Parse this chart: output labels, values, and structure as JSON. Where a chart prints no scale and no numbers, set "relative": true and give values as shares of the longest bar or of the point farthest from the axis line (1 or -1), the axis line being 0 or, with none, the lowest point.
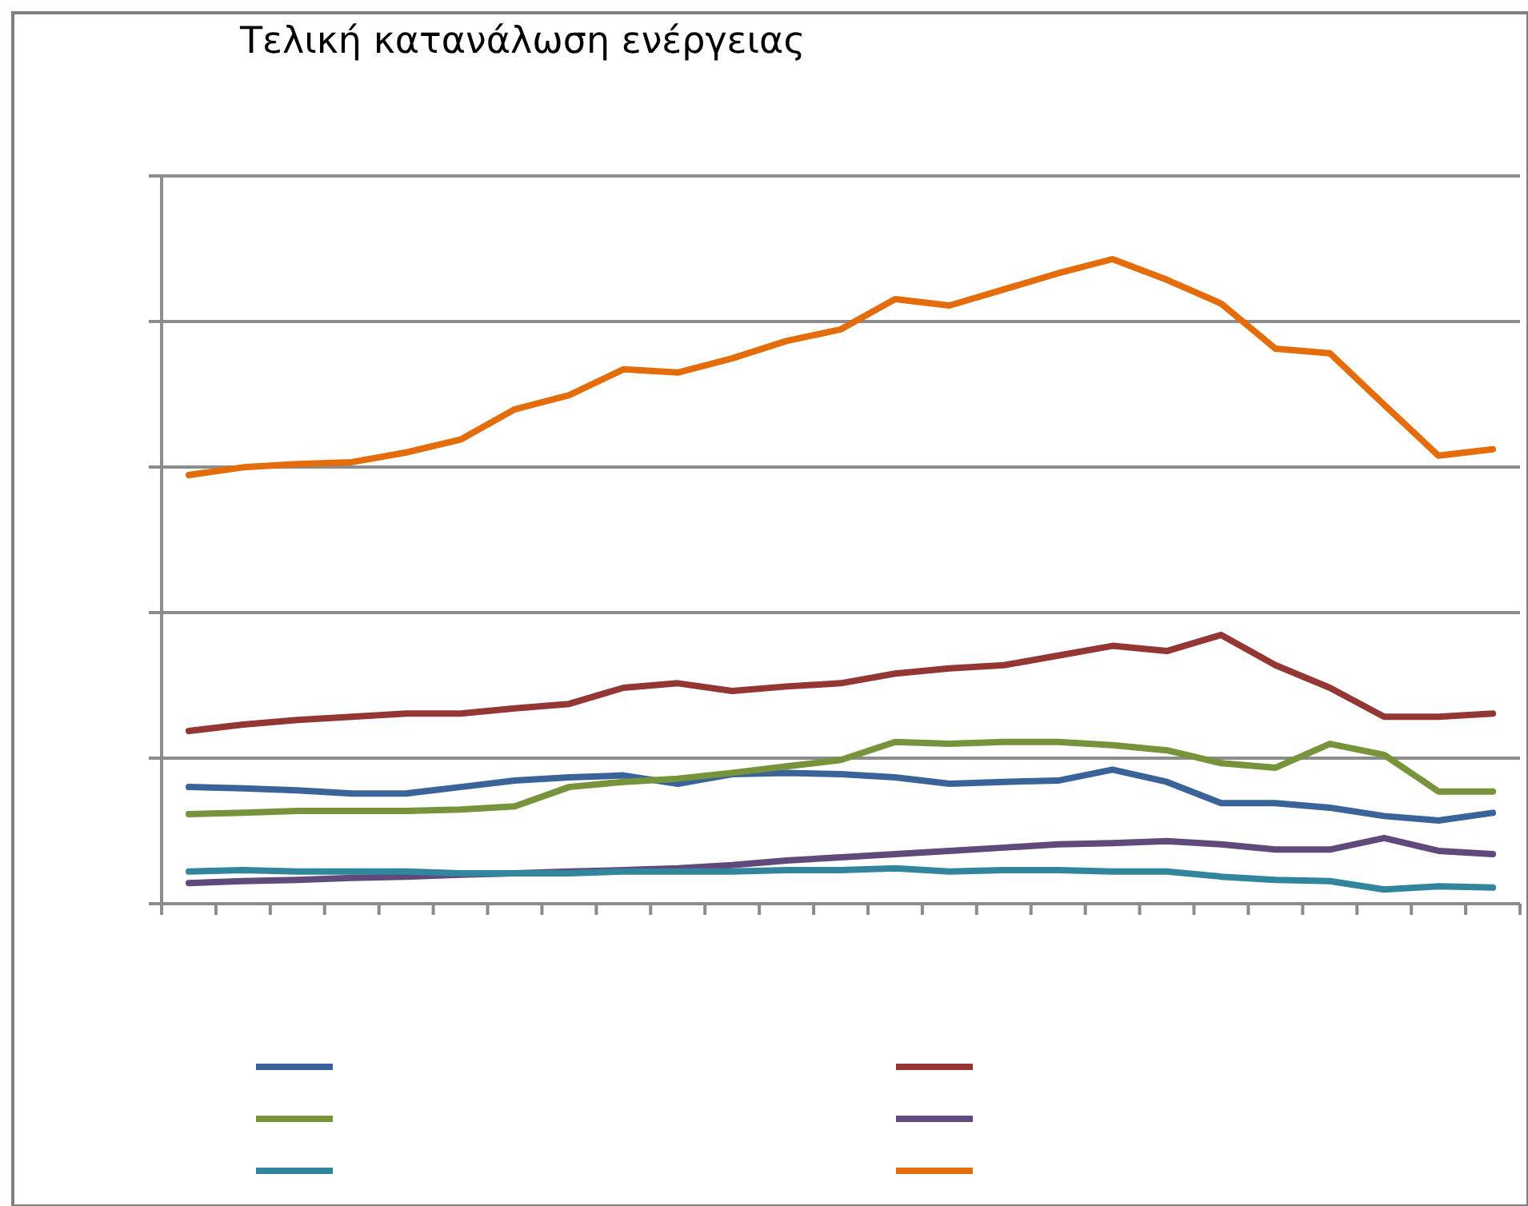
{
  "chart_data": {
    "type": "line",
    "title": "Τελική κατανάλωση ενέργειας",
    "relative": true,
    "grid": "y",
    "marker": "none",
    "line_style": "solid",
    "categories": [
      null,
      null,
      null,
      null,
      null,
      null,
      null,
      null,
      null,
      null,
      null,
      null,
      null,
      null,
      null,
      null,
      null,
      null,
      null,
      null,
      null,
      null,
      null,
      null,
      null
    ],
    "series": [
      {
        "color": "#3a6499",
        "values": [
          0.181,
          0.179,
          0.176,
          0.171,
          0.171,
          0.181,
          0.191,
          0.196,
          0.199,
          0.186,
          0.201,
          0.203,
          0.201,
          0.196,
          0.186,
          0.189,
          0.191,
          0.208,
          0.189,
          0.156,
          0.156,
          0.149,
          0.136,
          0.129,
          0.141
        ]
      },
      {
        "color": "#943634",
        "values": [
          0.268,
          0.278,
          0.285,
          0.29,
          0.295,
          0.295,
          0.303,
          0.31,
          0.335,
          0.342,
          0.33,
          0.337,
          0.342,
          0.357,
          0.365,
          0.37,
          0.385,
          0.4,
          0.392,
          0.417,
          0.37,
          0.335,
          0.29,
          0.29,
          0.295
        ]
      },
      {
        "color": "#77933c",
        "values": [
          0.139,
          0.141,
          0.144,
          0.144,
          0.144,
          0.146,
          0.151,
          0.181,
          0.189,
          0.194,
          0.203,
          0.213,
          0.223,
          0.251,
          0.248,
          0.251,
          0.251,
          0.246,
          0.238,
          0.218,
          0.211,
          0.248,
          0.231,
          0.174,
          0.174
        ]
      },
      {
        "color": "#604a7b",
        "values": [
          0.032,
          0.035,
          0.037,
          0.04,
          0.042,
          0.045,
          0.047,
          0.05,
          0.052,
          0.055,
          0.06,
          0.067,
          0.072,
          0.077,
          0.082,
          0.087,
          0.092,
          0.094,
          0.097,
          0.092,
          0.084,
          0.084,
          0.102,
          0.082,
          0.077
        ]
      },
      {
        "color": "#31859c",
        "values": [
          0.05,
          0.052,
          0.05,
          0.05,
          0.05,
          0.047,
          0.047,
          0.047,
          0.05,
          0.05,
          0.05,
          0.052,
          0.052,
          0.055,
          0.05,
          0.052,
          0.052,
          0.05,
          0.05,
          0.042,
          0.037,
          0.035,
          0.022,
          0.027,
          0.025
        ]
      },
      {
        "color": "#e46c0a",
        "values": [
          0.665,
          0.677,
          0.682,
          0.685,
          0.7,
          0.72,
          0.767,
          0.789,
          0.829,
          0.824,
          0.846,
          0.873,
          0.891,
          0.938,
          0.928,
          0.953,
          0.978,
          1,
          0.968,
          0.931,
          0.861,
          0.854,
          0.774,
          0.695,
          0.705
        ]
      }
    ]
  }
}
